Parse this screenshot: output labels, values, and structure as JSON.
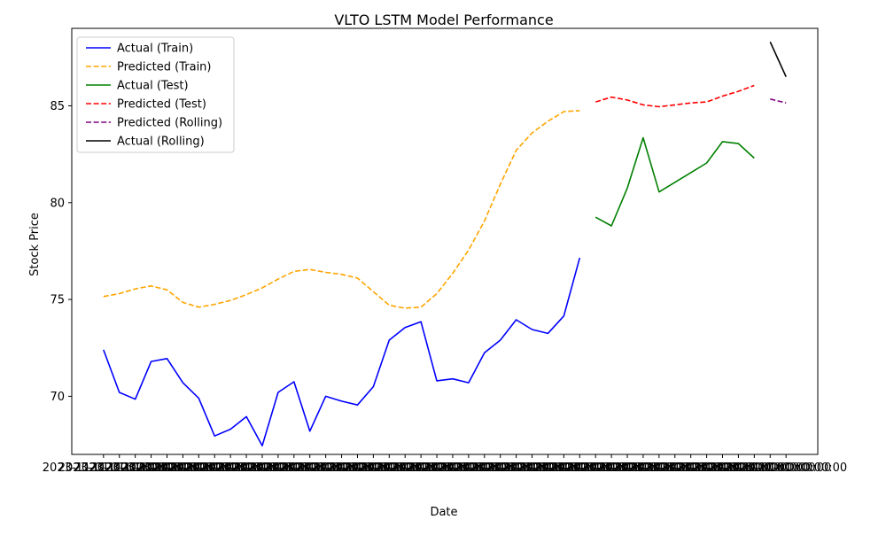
{
  "chart_data": {
    "type": "line",
    "title": "VLTO LSTM Model Performance",
    "xlabel": "Date",
    "ylabel": "Stock Price",
    "ylim": [
      67.0,
      89.0
    ],
    "yticks": [
      70,
      75,
      80,
      85
    ],
    "grid": false,
    "legend_position": "top-left",
    "x_tick_text": "2023-11-01 00:00:00",
    "series": [
      {
        "name": "Actual (Train)",
        "color": "#0000ff",
        "dash": "solid",
        "x": [
          0,
          1,
          2,
          3,
          4,
          5,
          6,
          7,
          8,
          9,
          10,
          11,
          12,
          13,
          14,
          15,
          16,
          17,
          18,
          19,
          20,
          21,
          22,
          23,
          24,
          25,
          26,
          27,
          28,
          29,
          30
        ],
        "values": [
          72.4,
          70.2,
          69.85,
          71.8,
          71.95,
          70.7,
          69.9,
          67.95,
          68.3,
          68.95,
          67.45,
          70.2,
          70.75,
          68.2,
          70.0,
          69.75,
          69.55,
          70.5,
          72.9,
          73.55,
          73.85,
          70.8,
          70.9,
          70.7,
          72.25,
          72.9,
          73.95,
          73.45,
          73.25,
          74.15,
          77.15
        ]
      },
      {
        "name": "Predicted (Train)",
        "color": "#ffa500",
        "dash": "dashed",
        "x": [
          0,
          1,
          2,
          3,
          4,
          5,
          6,
          7,
          8,
          9,
          10,
          11,
          12,
          13,
          14,
          15,
          16,
          17,
          18,
          19,
          20,
          21,
          22,
          23,
          24,
          25,
          26,
          27,
          28,
          29,
          30
        ],
        "values": [
          75.15,
          75.3,
          75.55,
          75.7,
          75.5,
          74.85,
          74.6,
          74.75,
          74.95,
          75.25,
          75.6,
          76.05,
          76.45,
          76.55,
          76.4,
          76.3,
          76.1,
          75.4,
          74.7,
          74.55,
          74.6,
          75.3,
          76.35,
          77.55,
          79.05,
          80.95,
          82.7,
          83.6,
          84.2,
          84.7,
          84.75
        ]
      },
      {
        "name": "Actual (Test)",
        "color": "#008000",
        "dash": "solid",
        "x": [
          31,
          32,
          33,
          34,
          35,
          36,
          37,
          38,
          39,
          40,
          41
        ],
        "values": [
          79.25,
          78.8,
          80.75,
          83.35,
          80.55,
          81.05,
          81.55,
          82.05,
          83.15,
          83.05,
          82.3
        ]
      },
      {
        "name": "Predicted (Test)",
        "color": "#ff0000",
        "dash": "dashed",
        "x": [
          31,
          32,
          33,
          34,
          35,
          36,
          37,
          38,
          39,
          40,
          41
        ],
        "values": [
          85.2,
          85.45,
          85.3,
          85.05,
          84.95,
          85.05,
          85.15,
          85.2,
          85.5,
          85.75,
          86.05
        ]
      },
      {
        "name": "Predicted (Rolling)",
        "color": "#800080",
        "dash": "dashed",
        "x": [
          42,
          43
        ],
        "values": [
          85.35,
          85.15
        ]
      },
      {
        "name": "Actual (Rolling)",
        "color": "#000000",
        "dash": "solid",
        "x": [
          42,
          43
        ],
        "values": [
          88.3,
          86.5
        ]
      }
    ]
  }
}
